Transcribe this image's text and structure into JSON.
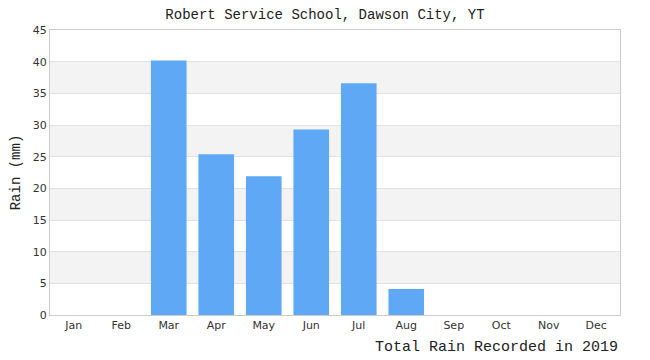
{
  "chart_data": {
    "type": "bar",
    "title": "Robert Service School, Dawson City, YT",
    "y_label": "Rain (mm)",
    "annotations": [
      "Total Rain Recorded in 2019"
    ],
    "categories": [
      "Jan",
      "Feb",
      "Mar",
      "Apr",
      "May",
      "Jun",
      "Jul",
      "Aug",
      "Sep",
      "Oct",
      "Nov",
      "Dec"
    ],
    "values": [
      0,
      0,
      40.2,
      25.4,
      21.9,
      29.3,
      36.6,
      4.1,
      0,
      0,
      0,
      0
    ],
    "color": "#5fa8f5",
    "ylim": [
      0,
      45
    ],
    "yticks": [
      0,
      5,
      10,
      15,
      20,
      25,
      30,
      35,
      40,
      45
    ],
    "grid": true
  }
}
